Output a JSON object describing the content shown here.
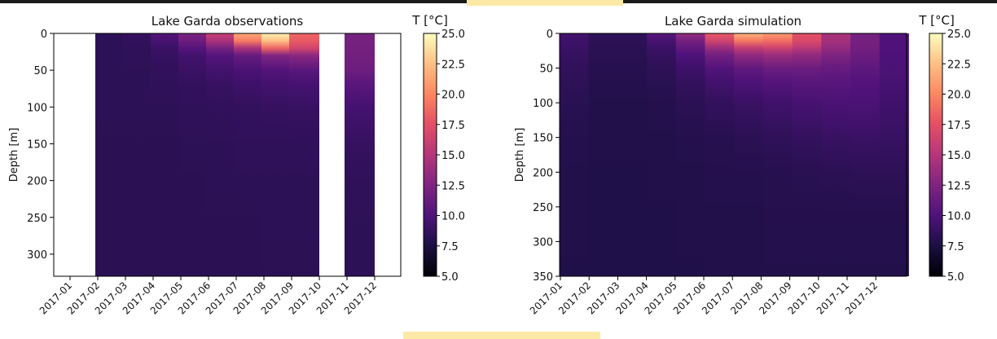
{
  "chart_data": [
    {
      "type": "heatmap",
      "title": "Lake Garda observations",
      "ylabel": "Depth [m]",
      "xlabel": "",
      "colorbar_label": "T [°C]",
      "colormap": "magma",
      "color_range": [
        5.0,
        25.0
      ],
      "colorbar_ticks": [
        "25.0",
        "22.5",
        "20.0",
        "17.5",
        "15.0",
        "12.5",
        "10.0",
        "7.5",
        "5.0"
      ],
      "x_tick_labels": [
        "2017-01",
        "2017-02",
        "2017-03",
        "2017-04",
        "2017-05",
        "2017-06",
        "2017-07",
        "2017-08",
        "2017-09",
        "2017-10",
        "2017-11",
        "2017-12"
      ],
      "y_ticks": [
        0,
        50,
        100,
        150,
        200,
        250,
        300
      ],
      "y_range": [
        0,
        330
      ],
      "y_inverted": true,
      "profile_depths": [
        0,
        10,
        20,
        30,
        50,
        70,
        100,
        150,
        200,
        260,
        330
      ],
      "profiles": [
        {
          "month": "2017-02",
          "temps": [
            8.4,
            8.4,
            8.4,
            8.4,
            8.4,
            8.4,
            8.4,
            8.3,
            8.3,
            8.3,
            8.3
          ]
        },
        {
          "month": "2017-03",
          "temps": [
            8.8,
            8.6,
            8.5,
            8.5,
            8.4,
            8.4,
            8.4,
            8.3,
            8.3,
            8.3,
            8.3
          ]
        },
        {
          "month": "2017-04",
          "temps": [
            10.2,
            9.6,
            9.0,
            8.8,
            8.6,
            8.5,
            8.4,
            8.3,
            8.3,
            8.3,
            8.3
          ]
        },
        {
          "month": "2017-05",
          "temps": [
            12.3,
            11.5,
            10.3,
            9.4,
            9.0,
            8.7,
            8.5,
            8.4,
            8.3,
            8.3,
            8.3
          ]
        },
        {
          "month": "2017-06",
          "temps": [
            16.0,
            14.5,
            12.0,
            10.3,
            9.4,
            8.9,
            8.6,
            8.4,
            8.4,
            8.3,
            8.3
          ]
        },
        {
          "month": "2017-07",
          "temps": [
            21.5,
            19.5,
            14.5,
            11.2,
            9.8,
            9.2,
            8.7,
            8.5,
            8.4,
            8.3,
            8.3
          ]
        },
        {
          "month": "2017-08",
          "temps": [
            24.5,
            22.5,
            18.5,
            12.5,
            10.2,
            9.4,
            8.8,
            8.5,
            8.4,
            8.4,
            8.3
          ]
        },
        {
          "month": "2017-09",
          "temps": [
            18.5,
            18.0,
            16.5,
            13.0,
            10.5,
            9.5,
            8.9,
            8.5,
            8.4,
            8.4,
            8.3
          ]
        },
        {
          "month": "2017-11",
          "temps": [
            12.0,
            12.0,
            11.9,
            11.8,
            11.5,
            10.5,
            9.5,
            8.8,
            8.5,
            8.4,
            8.4
          ]
        }
      ]
    },
    {
      "type": "heatmap",
      "title": "Lake Garda simulation",
      "ylabel": "Depth [m]",
      "xlabel": "",
      "colorbar_label": "T [°C]",
      "colormap": "magma",
      "color_range": [
        5.0,
        25.0
      ],
      "colorbar_ticks": [
        "25.0",
        "22.5",
        "20.0",
        "17.5",
        "15.0",
        "12.5",
        "10.0",
        "7.5",
        "5.0"
      ],
      "x_tick_labels": [
        "2017-01",
        "2017-02",
        "2017-03",
        "2017-04",
        "2017-05",
        "2017-06",
        "2017-07",
        "2017-08",
        "2017-09",
        "2017-10",
        "2017-11",
        "2017-12"
      ],
      "y_ticks": [
        0,
        50,
        100,
        150,
        200,
        250,
        300,
        350
      ],
      "y_range": [
        0,
        350
      ],
      "y_inverted": true,
      "profile_depths": [
        0,
        10,
        20,
        30,
        50,
        70,
        100,
        150,
        200,
        260,
        350
      ],
      "profiles": [
        {
          "month": "2017-01",
          "temps": [
            9.4,
            9.2,
            9.0,
            8.8,
            8.6,
            8.4,
            8.2,
            8.0,
            7.9,
            7.9,
            7.8
          ]
        },
        {
          "month": "2017-02",
          "temps": [
            8.5,
            8.4,
            8.3,
            8.2,
            8.1,
            8.0,
            7.9,
            7.9,
            7.8,
            7.8,
            7.8
          ]
        },
        {
          "month": "2017-03",
          "temps": [
            8.5,
            8.4,
            8.3,
            8.2,
            8.1,
            8.0,
            7.9,
            7.9,
            7.8,
            7.8,
            7.8
          ]
        },
        {
          "month": "2017-04",
          "temps": [
            10.5,
            9.6,
            9.1,
            8.8,
            8.4,
            8.2,
            8.0,
            7.9,
            7.9,
            7.8,
            7.8
          ]
        },
        {
          "month": "2017-05",
          "temps": [
            13.5,
            12.0,
            11.0,
            10.0,
            9.2,
            8.7,
            8.3,
            8.0,
            7.9,
            7.9,
            7.8
          ]
        },
        {
          "month": "2017-06",
          "temps": [
            18.0,
            16.5,
            14.0,
            12.0,
            10.2,
            9.4,
            8.7,
            8.1,
            8.0,
            7.9,
            7.9
          ]
        },
        {
          "month": "2017-07",
          "temps": [
            22.0,
            19.5,
            16.0,
            13.5,
            11.0,
            9.9,
            9.0,
            8.3,
            8.0,
            7.9,
            7.9
          ]
        },
        {
          "month": "2017-08",
          "temps": [
            21.0,
            19.0,
            16.5,
            14.0,
            11.5,
            10.3,
            9.3,
            8.5,
            8.1,
            8.0,
            7.9
          ]
        },
        {
          "month": "2017-09",
          "temps": [
            17.5,
            17.0,
            15.5,
            13.5,
            11.5,
            10.5,
            9.6,
            8.7,
            8.2,
            8.0,
            7.9
          ]
        },
        {
          "month": "2017-10",
          "temps": [
            14.5,
            14.2,
            13.5,
            12.5,
            11.2,
            10.5,
            9.8,
            8.9,
            8.3,
            8.0,
            7.9
          ]
        },
        {
          "month": "2017-11",
          "temps": [
            12.0,
            12.0,
            11.8,
            11.5,
            10.8,
            10.2,
            9.8,
            9.0,
            8.4,
            8.0,
            7.9
          ]
        },
        {
          "month": "2017-12",
          "temps": [
            10.0,
            10.0,
            10.0,
            9.9,
            9.8,
            9.6,
            9.3,
            8.9,
            8.4,
            8.0,
            7.9
          ]
        }
      ]
    }
  ]
}
